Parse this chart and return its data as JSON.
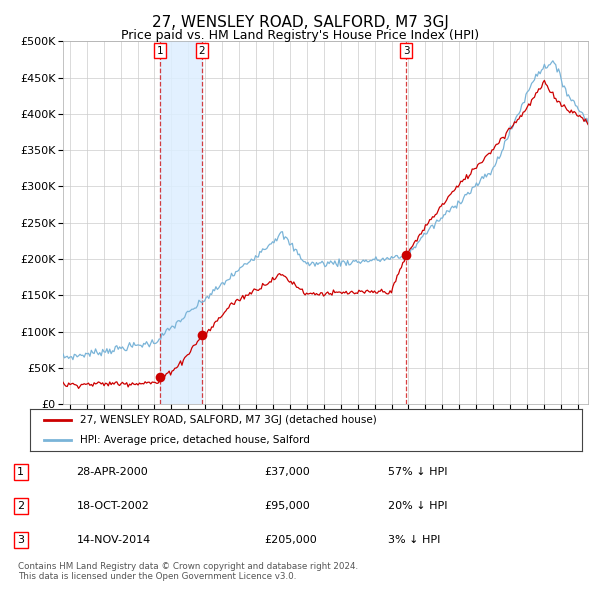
{
  "title": "27, WENSLEY ROAD, SALFORD, M7 3GJ",
  "subtitle": "Price paid vs. HM Land Registry's House Price Index (HPI)",
  "ylim": [
    0,
    500000
  ],
  "yticks": [
    0,
    50000,
    100000,
    150000,
    200000,
    250000,
    300000,
    350000,
    400000,
    450000,
    500000
  ],
  "xlim_start": 1994.6,
  "xlim_end": 2025.6,
  "sale_dates": [
    2000.32,
    2002.8,
    2014.87
  ],
  "sale_prices": [
    37000,
    95000,
    205000
  ],
  "sale_labels": [
    "1",
    "2",
    "3"
  ],
  "shade_color": "#ddeeff",
  "legend_label_red": "27, WENSLEY ROAD, SALFORD, M7 3GJ (detached house)",
  "legend_label_blue": "HPI: Average price, detached house, Salford",
  "table_rows": [
    [
      "1",
      "28-APR-2000",
      "£37,000",
      "57% ↓ HPI"
    ],
    [
      "2",
      "18-OCT-2002",
      "£95,000",
      "20% ↓ HPI"
    ],
    [
      "3",
      "14-NOV-2014",
      "£205,000",
      "3% ↓ HPI"
    ]
  ],
  "footer": "Contains HM Land Registry data © Crown copyright and database right 2024.\nThis data is licensed under the Open Government Licence v3.0.",
  "bg_color": "#ffffff",
  "grid_color": "#cccccc",
  "red_color": "#cc0000",
  "blue_color": "#7ab4d8",
  "title_fontsize": 11,
  "subtitle_fontsize": 9,
  "axis_fontsize": 8,
  "tick_fontsize": 7.5
}
